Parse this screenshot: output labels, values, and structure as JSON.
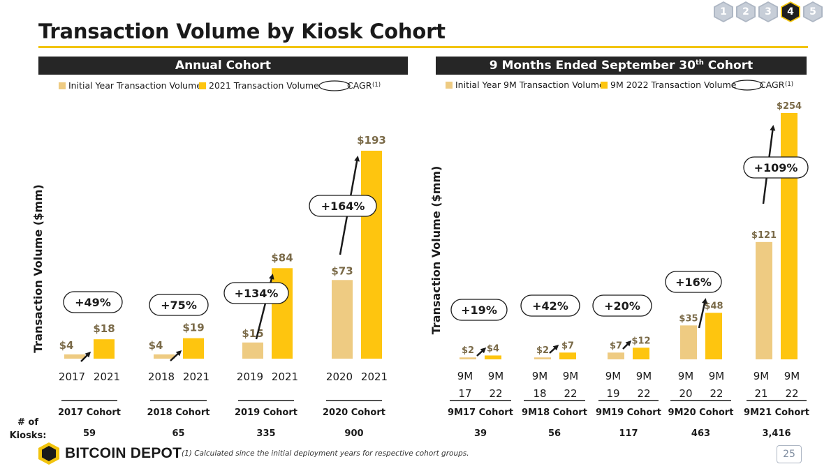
{
  "title": "Transaction Volume by Kiosk Cohort",
  "nav": [
    "1",
    "2",
    "3",
    "4",
    "5"
  ],
  "nav_active": "4",
  "page_number": "25",
  "logo_text": "BITCOIN DEPOT",
  "footnote": "(1)   Calculated since the initial deployment years for respective cohort groups.",
  "kiosks_label": "# of Kiosks:",
  "colors": {
    "initial": "#eecb82",
    "current": "#fec50f",
    "accent": "#f2c40e",
    "dark": "#262626"
  },
  "chart_data": [
    {
      "type": "bar",
      "title": "Annual Cohort",
      "ylabel": "Transaction Volume ($mm)",
      "legend": {
        "initial": "Initial Year Transaction Volume",
        "current": "2021 Transaction Volume",
        "cagr": "CAGR",
        "cagr_note": "(1)"
      },
      "ylim": [
        0,
        193
      ],
      "groups": [
        {
          "name": "2017 Cohort",
          "x_labels": [
            "2017",
            "2021"
          ],
          "values": [
            4,
            18
          ],
          "labels": [
            "$4",
            "$18"
          ],
          "cagr": "+49%",
          "kiosks": "59"
        },
        {
          "name": "2018 Cohort",
          "x_labels": [
            "2018",
            "2021"
          ],
          "values": [
            4,
            19
          ],
          "labels": [
            "$4",
            "$19"
          ],
          "cagr": "+75%",
          "kiosks": "65"
        },
        {
          "name": "2019 Cohort",
          "x_labels": [
            "2019",
            "2021"
          ],
          "values": [
            15,
            84
          ],
          "labels": [
            "$15",
            "$84"
          ],
          "cagr": "+134%",
          "kiosks": "335"
        },
        {
          "name": "2020 Cohort",
          "x_labels": [
            "2020",
            "2021"
          ],
          "values": [
            73,
            193
          ],
          "labels": [
            "$73",
            "$193"
          ],
          "cagr": "+164%",
          "kiosks": "900"
        }
      ]
    },
    {
      "type": "bar",
      "title": "9 Months Ended September 30",
      "title_sup": "th",
      "title_suffix": " Cohort",
      "ylabel": "Transaction Volume ($mm)",
      "legend": {
        "initial": "Initial Year 9M Transaction Volume",
        "current": "9M 2022 Transaction Volume",
        "cagr": "CAGR",
        "cagr_note": "(1)"
      },
      "ylim": [
        0,
        254
      ],
      "groups": [
        {
          "name": "9M17 Cohort",
          "x_labels": [
            [
              "9M",
              "17"
            ],
            [
              "9M",
              "22"
            ]
          ],
          "values": [
            2,
            4
          ],
          "labels": [
            "$2",
            "$4"
          ],
          "cagr": "+19%",
          "kiosks": "39"
        },
        {
          "name": "9M18 Cohort",
          "x_labels": [
            [
              "9M",
              "18"
            ],
            [
              "9M",
              "22"
            ]
          ],
          "values": [
            2,
            7
          ],
          "labels": [
            "$2",
            "$7"
          ],
          "cagr": "+42%",
          "kiosks": "56"
        },
        {
          "name": "9M19 Cohort",
          "x_labels": [
            [
              "9M",
              "19"
            ],
            [
              "9M",
              "22"
            ]
          ],
          "values": [
            7,
            12
          ],
          "labels": [
            "$7",
            "$12"
          ],
          "cagr": "+20%",
          "kiosks": "117"
        },
        {
          "name": "9M20 Cohort",
          "x_labels": [
            [
              "9M",
              "20"
            ],
            [
              "9M",
              "22"
            ]
          ],
          "values": [
            35,
            48
          ],
          "labels": [
            "$35",
            "$48"
          ],
          "cagr": "+16%",
          "kiosks": "463"
        },
        {
          "name": "9M21 Cohort",
          "x_labels": [
            [
              "9M",
              "21"
            ],
            [
              "9M",
              "22"
            ]
          ],
          "values": [
            121,
            254
          ],
          "labels": [
            "$121",
            "$254"
          ],
          "cagr": "+109%",
          "kiosks": "3,416"
        }
      ]
    }
  ]
}
